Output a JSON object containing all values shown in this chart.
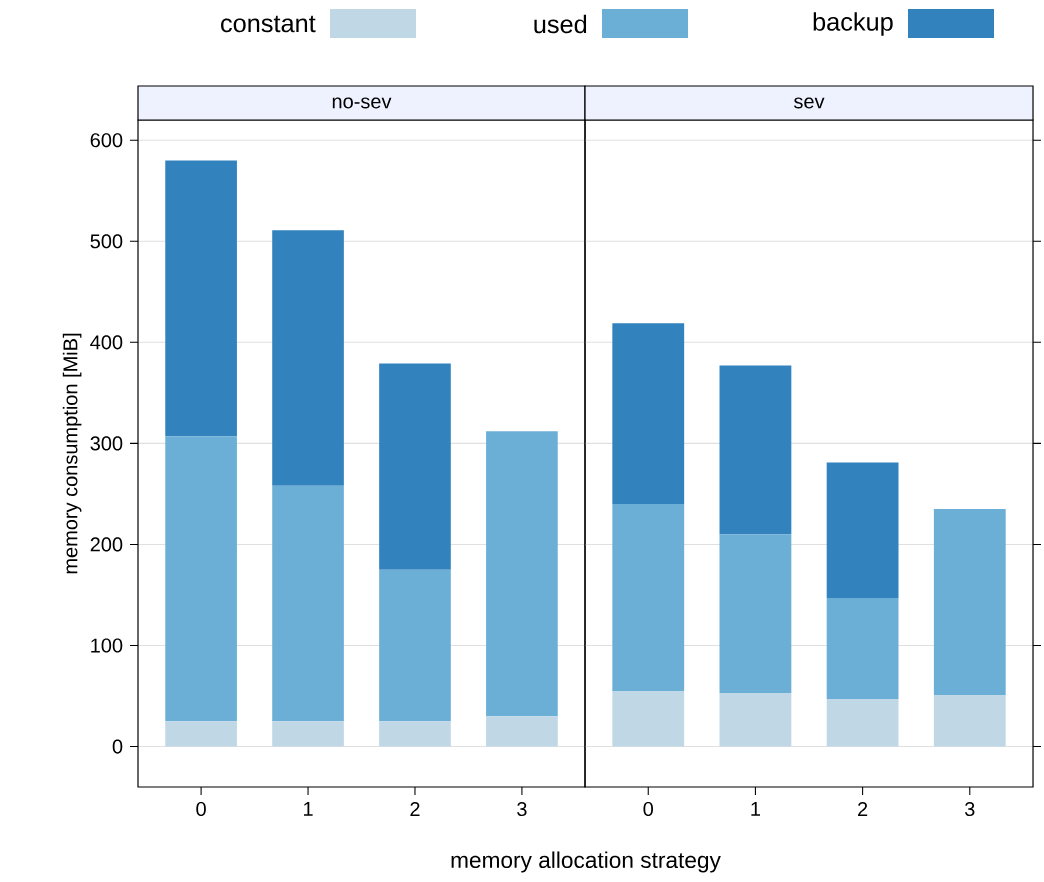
{
  "chart_data": [
    {
      "type": "bar",
      "title": "no-sev",
      "xlabel": "memory allocation strategy",
      "ylabel": "memory consumption [MiB]",
      "categories": [
        "0",
        "1",
        "2",
        "3"
      ],
      "stacked": true,
      "ylim": [
        -40,
        620
      ],
      "yticks": [
        0,
        100,
        200,
        300,
        400,
        500,
        600
      ],
      "grid": "y",
      "legend": "top",
      "tick_labels": "xy",
      "series": [
        {
          "name": "constant",
          "color": "#c0d7e6",
          "values": [
            25,
            25,
            25,
            30
          ]
        },
        {
          "name": "used",
          "color": "#6baed6",
          "values": [
            282,
            233,
            150,
            282
          ]
        },
        {
          "name": "backup",
          "color": "#3182bd",
          "values": [
            273,
            253,
            204,
            null
          ]
        }
      ]
    },
    {
      "type": "bar",
      "title": "sev",
      "categories": [
        "0",
        "1",
        "2",
        "3"
      ],
      "stacked": true,
      "ylim": [
        -40,
        620
      ],
      "yticks": [
        0,
        100,
        200,
        300,
        400,
        500,
        600
      ],
      "grid": "y",
      "tick_labels": "x",
      "series": [
        {
          "color": "#c0d7e6",
          "values": [
            55,
            53,
            47,
            51
          ]
        },
        {
          "color": "#6baed6",
          "values": [
            185,
            157,
            100,
            184
          ]
        },
        {
          "color": "#3182bd",
          "values": [
            179,
            167,
            134,
            null
          ]
        }
      ]
    }
  ]
}
